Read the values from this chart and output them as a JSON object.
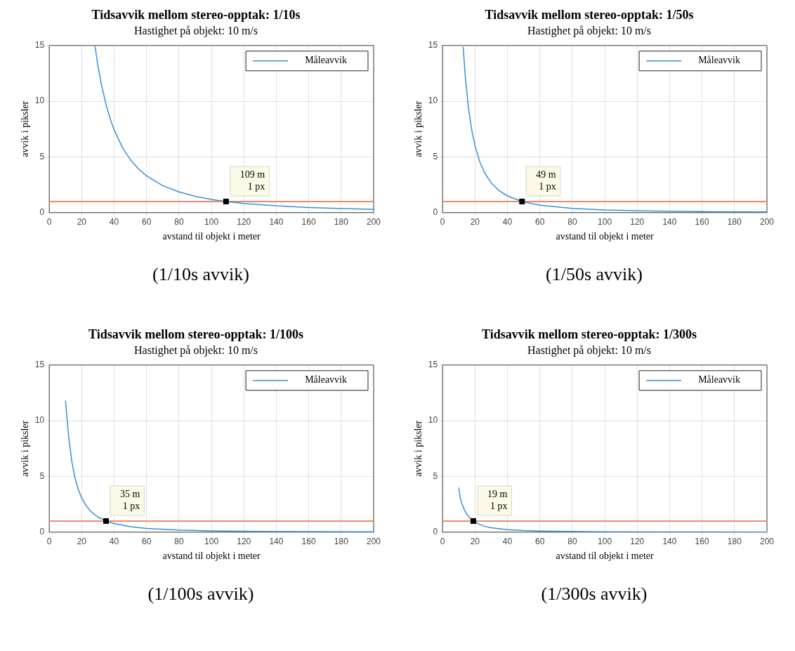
{
  "chart_data": [
    {
      "type": "line",
      "title": "Tidsavvik mellom stereo-opptak: 1/10s",
      "subtitle": "Hastighet på objekt: 10 m/s",
      "xlabel": "avstand til objekt i meter",
      "ylabel": "avvik i piksler",
      "x": [
        28.2,
        30,
        32,
        35,
        38,
        40,
        45,
        50,
        55,
        60,
        70,
        80,
        90,
        100,
        109,
        120,
        140,
        160,
        180,
        200
      ],
      "series": [
        {
          "name": "Måleavvik",
          "color": "#3a8fd6",
          "values": [
            14.94,
            13.2,
            11.6,
            9.7,
            8.23,
            7.43,
            5.87,
            4.75,
            3.93,
            3.3,
            2.42,
            1.86,
            1.47,
            1.19,
            1.0,
            0.83,
            0.61,
            0.46,
            0.37,
            0.3
          ]
        }
      ],
      "ref_lines": [
        {
          "axis": "y",
          "value": 1,
          "color": "#f0896a"
        }
      ],
      "annotations": [
        {
          "text": "109 m\n1 px",
          "x": 109,
          "y": 1
        },
        "(1/10s avvik)"
      ],
      "xlim": [
        0,
        200
      ],
      "xticks": [
        0,
        20,
        40,
        60,
        80,
        100,
        120,
        140,
        160,
        180,
        200
      ],
      "ylim": [
        0,
        15
      ],
      "yticks": [
        0,
        5,
        10,
        15
      ],
      "grid": true,
      "legend": "top right",
      "marker": "none"
    },
    {
      "type": "line",
      "title": "Tidsavvik mellom stereo-opptak: 1/50s",
      "subtitle": "Hastighet på objekt: 10 m/s",
      "xlabel": "avstand til objekt i meter",
      "ylabel": "avvik i piksler",
      "x": [
        12.7,
        14,
        16,
        18,
        20,
        23,
        26,
        30,
        35,
        40,
        49,
        60,
        80,
        100,
        130,
        160,
        200
      ],
      "series": [
        {
          "name": "Måleavvik",
          "color": "#3a8fd6",
          "values": [
            14.89,
            12.25,
            9.38,
            7.41,
            6.0,
            4.54,
            3.55,
            2.67,
            1.96,
            1.5,
            1.0,
            0.67,
            0.38,
            0.24,
            0.14,
            0.09,
            0.06
          ]
        }
      ],
      "ref_lines": [
        {
          "axis": "y",
          "value": 1,
          "color": "#f0896a"
        }
      ],
      "annotations": [
        {
          "text": "49 m\n1 px",
          "x": 49,
          "y": 1
        },
        "(1/50s avvik)"
      ],
      "xlim": [
        0,
        200
      ],
      "xticks": [
        0,
        20,
        40,
        60,
        80,
        100,
        120,
        140,
        160,
        180,
        200
      ],
      "ylim": [
        0,
        15
      ],
      "yticks": [
        0,
        5,
        10,
        15
      ],
      "grid": true,
      "legend": "top right",
      "marker": "none"
    },
    {
      "type": "line",
      "title": "Tidsavvik mellom stereo-opptak: 1/100s",
      "subtitle": "Hastighet på objekt: 10 m/s",
      "xlabel": "avstand til objekt i meter",
      "ylabel": "avvik i piksler",
      "x": [
        10,
        12,
        14,
        16,
        18,
        20,
        23,
        26,
        30,
        35,
        40,
        50,
        60,
        80,
        100,
        130,
        160,
        200
      ],
      "series": [
        {
          "name": "Måleavvik",
          "color": "#3a8fd6",
          "values": [
            11.8,
            8.5,
            6.25,
            4.79,
            3.78,
            3.06,
            2.32,
            1.81,
            1.36,
            1.0,
            0.77,
            0.49,
            0.34,
            0.19,
            0.12,
            0.07,
            0.05,
            0.03
          ]
        }
      ],
      "ref_lines": [
        {
          "axis": "y",
          "value": 1,
          "color": "#f0896a"
        }
      ],
      "annotations": [
        {
          "text": "35 m\n1 px",
          "x": 35,
          "y": 1
        },
        "(1/100s avvik)"
      ],
      "xlim": [
        0,
        200
      ],
      "xticks": [
        0,
        20,
        40,
        60,
        80,
        100,
        120,
        140,
        160,
        180,
        200
      ],
      "ylim": [
        0,
        15
      ],
      "yticks": [
        0,
        5,
        10,
        15
      ],
      "grid": true,
      "legend": "top right",
      "marker": "none"
    },
    {
      "type": "line",
      "title": "Tidsavvik mellom stereo-opptak: 1/300s",
      "subtitle": "Hastighet på objekt: 10 m/s",
      "xlabel": "avstand til objekt i meter",
      "ylabel": "avvik i piksler",
      "x": [
        10,
        11,
        12,
        14,
        16,
        19,
        22,
        26,
        30,
        40,
        50,
        60,
        80,
        100,
        140,
        200
      ],
      "series": [
        {
          "name": "Måleavvik",
          "color": "#3a8fd6",
          "values": [
            4.0,
            3.0,
            2.51,
            1.84,
            1.41,
            1.0,
            0.75,
            0.53,
            0.4,
            0.23,
            0.14,
            0.1,
            0.06,
            0.04,
            0.02,
            0.01
          ]
        }
      ],
      "ref_lines": [
        {
          "axis": "y",
          "value": 1,
          "color": "#f0896a"
        }
      ],
      "annotations": [
        {
          "text": "19 m\n1 px",
          "x": 19,
          "y": 1
        },
        "(1/300s avvik)"
      ],
      "xlim": [
        0,
        200
      ],
      "xticks": [
        0,
        20,
        40,
        60,
        80,
        100,
        120,
        140,
        160,
        180,
        200
      ],
      "ylim": [
        0,
        15
      ],
      "yticks": [
        0,
        5,
        10,
        15
      ],
      "grid": true,
      "legend": "top right",
      "marker": "none"
    }
  ]
}
